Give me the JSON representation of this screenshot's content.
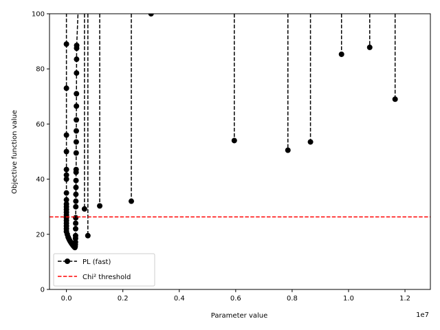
{
  "chart_data": {
    "type": "line",
    "xlabel": "Parameter value",
    "ylabel": "Objective function value",
    "x_scale_label": "1e7",
    "xlim": [
      -600000,
      12900000
    ],
    "ylim": [
      0,
      100
    ],
    "x_ticks": [
      0,
      2000000,
      4000000,
      6000000,
      8000000,
      10000000,
      12000000
    ],
    "x_tick_labels": [
      "0.0",
      "0.2",
      "0.4",
      "0.6",
      "0.8",
      "1.0",
      "1.2"
    ],
    "y_ticks": [
      0,
      20,
      40,
      60,
      80,
      100
    ],
    "y_tick_labels": [
      "0",
      "20",
      "40",
      "60",
      "80",
      "100"
    ],
    "grid": false,
    "legend_position": "lower-left",
    "series": [
      {
        "name": "PL (fast)",
        "color": "#000000",
        "style": "dashed-with-markers",
        "points": [
          [
            0,
            89.0
          ],
          [
            0,
            73.0
          ],
          [
            0,
            56.0
          ],
          [
            0,
            50.0
          ],
          [
            0,
            43.5
          ],
          [
            0,
            41.5
          ],
          [
            0,
            40.0
          ],
          [
            0,
            35.0
          ],
          [
            0,
            32.5
          ],
          [
            0,
            31.0
          ],
          [
            0,
            30.0
          ],
          [
            0,
            29.0
          ],
          [
            0,
            28.0
          ],
          [
            0,
            27.0
          ],
          [
            0,
            26.0
          ],
          [
            0,
            25.0
          ],
          [
            0,
            24.0
          ],
          [
            0,
            23.0
          ],
          [
            0,
            22.0
          ],
          [
            0,
            21.0
          ],
          [
            30000,
            20.0
          ],
          [
            60000,
            19.0
          ],
          [
            90000,
            18.3
          ],
          [
            120000,
            17.7
          ],
          [
            150000,
            17.2
          ],
          [
            180000,
            16.7
          ],
          [
            210000,
            16.3
          ],
          [
            240000,
            15.9
          ],
          [
            265000,
            15.6
          ],
          [
            285000,
            15.4
          ],
          [
            300000,
            15.2
          ],
          [
            310000,
            15.6
          ],
          [
            315000,
            16.3
          ],
          [
            320000,
            17.2
          ],
          [
            322000,
            18.5
          ],
          [
            324000,
            19.5
          ],
          [
            326000,
            22.0
          ],
          [
            328000,
            24.0
          ],
          [
            330000,
            26.0
          ],
          [
            332000,
            30.0
          ],
          [
            334000,
            32.0
          ],
          [
            336000,
            34.5
          ],
          [
            338000,
            37.0
          ],
          [
            340000,
            39.5
          ],
          [
            342000,
            42.5
          ],
          [
            344000,
            43.5
          ],
          [
            346000,
            49.5
          ],
          [
            348000,
            53.5
          ],
          [
            350000,
            57.5
          ],
          [
            352000,
            61.5
          ],
          [
            354000,
            66.5
          ],
          [
            356000,
            71.0
          ],
          [
            358000,
            78.5
          ],
          [
            360000,
            83.5
          ],
          [
            362000,
            87.5
          ],
          [
            364000,
            88.5
          ]
        ]
      }
    ],
    "outer_branches": [
      {
        "x": 640000,
        "y": 29.2
      },
      {
        "x": 760000,
        "y": 19.5
      },
      {
        "x": 1180000,
        "y": 30.3
      },
      {
        "x": 2300000,
        "y": 32.0
      },
      {
        "x": 5950000,
        "y": 54.0
      },
      {
        "x": 7850000,
        "y": 50.5
      },
      {
        "x": 8650000,
        "y": 53.5
      },
      {
        "x": 9750000,
        "y": 85.3
      },
      {
        "x": 10750000,
        "y": 87.8
      },
      {
        "x": 11650000,
        "y": 69.0
      }
    ],
    "top_point": {
      "x": 3000000,
      "y": 100
    },
    "threshold": {
      "name": "Chi² threshold",
      "value": 26.3,
      "color": "#ff0000",
      "style": "dashed"
    }
  }
}
